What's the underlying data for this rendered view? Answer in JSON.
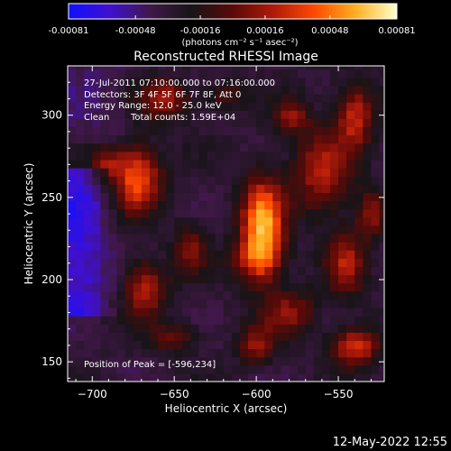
{
  "colorbar": {
    "ticks": [
      "-0.00081",
      "-0.00048",
      "-0.00016",
      "0.00016",
      "0.00048",
      "0.00081"
    ],
    "units": "(photons cm⁻² s⁻¹ asec⁻²)",
    "range": [
      -0.00081,
      0.00081
    ],
    "stops": [
      "#1010ff",
      "#4010d0",
      "#401848",
      "#181418",
      "#5a0a08",
      "#b01a0a",
      "#ff4a00",
      "#ffb020",
      "#ffffd0"
    ]
  },
  "chart_data": {
    "type": "heatmap",
    "title": "Reconstructed RHESSI Image",
    "xlabel": "Heliocentric X (arcsec)",
    "ylabel": "Heliocentric Y (arcsec)",
    "xlim": [
      -715,
      -522
    ],
    "ylim": [
      138,
      330
    ],
    "xticks": [
      -700,
      -650,
      -600,
      -550
    ],
    "yticks": [
      150,
      200,
      250,
      300
    ],
    "grid": false,
    "annotations": {
      "time": "27-Jul-2011 07:10:00.000 to 07:16:00.000",
      "detectors": "Detectors: 3F 4F 5F 6F 7F 8F, Att 0",
      "energy": "Energy Range: 12.0 - 25.0 keV",
      "clean": "Clean",
      "counts": "Total counts: 1.59E+04",
      "peak": "Position of Peak = [-596,234]"
    },
    "peak": [
      -596,
      234
    ]
  },
  "footer": {
    "date": "12-May-2022 12:55"
  }
}
